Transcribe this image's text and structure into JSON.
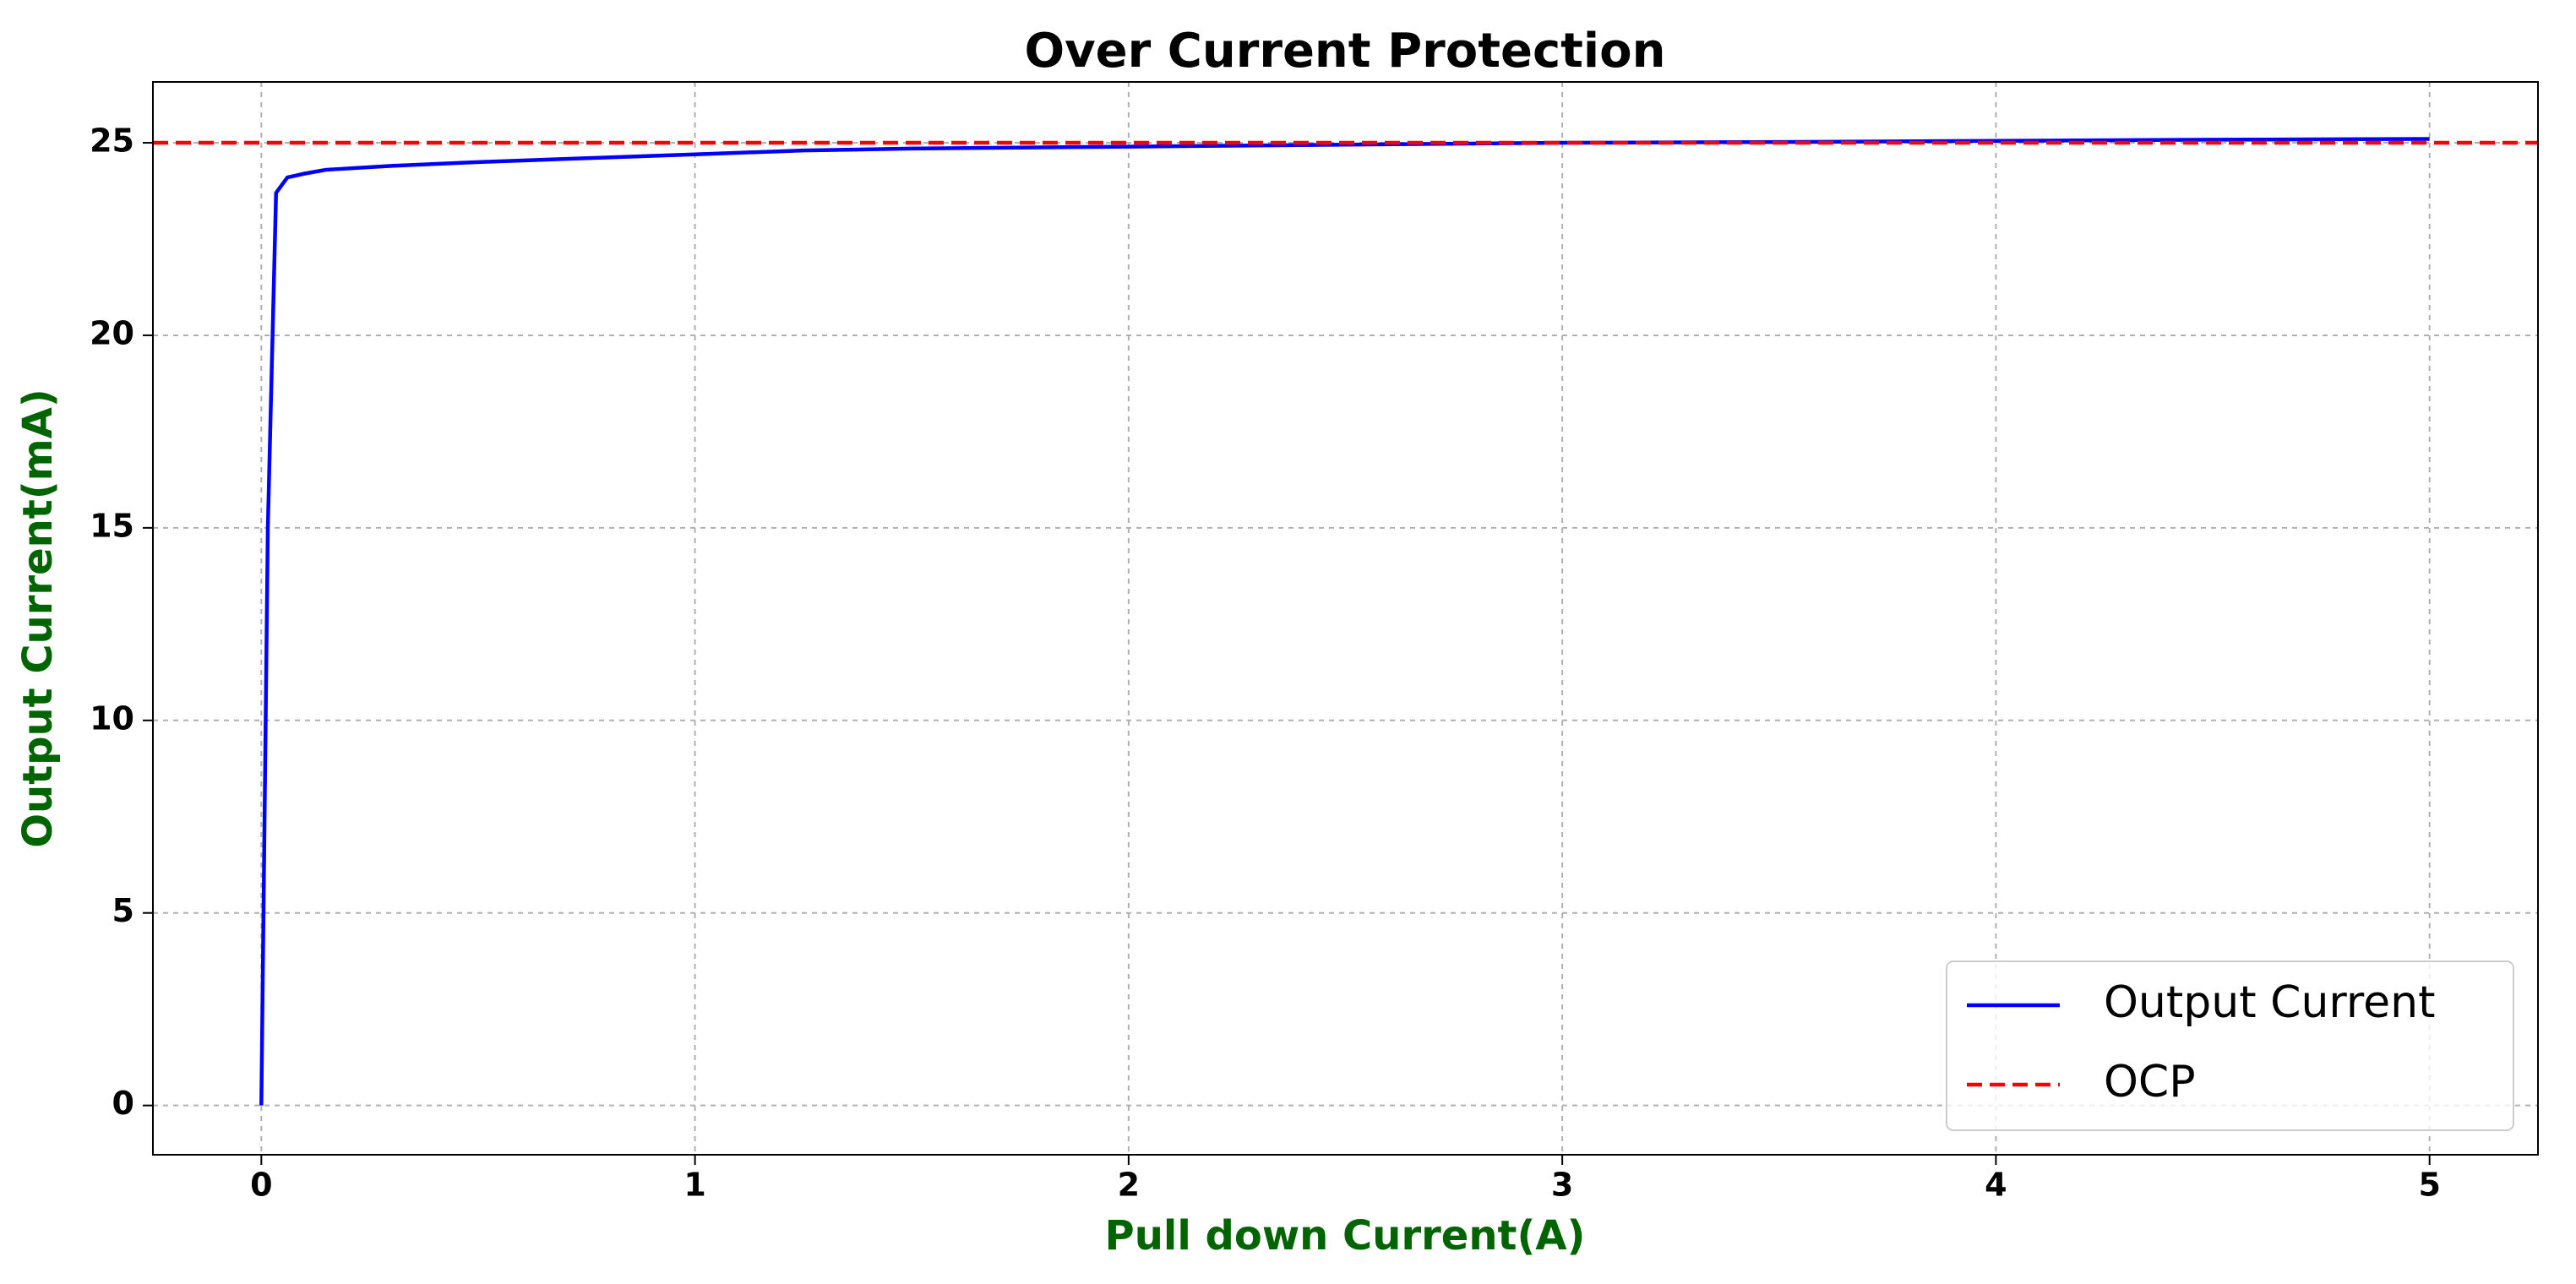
{
  "chart_data": {
    "type": "line",
    "title": "Over Current Protection",
    "x_label": "Pull down Current(A)",
    "y_label": "Output Current(mA)",
    "series": [
      {
        "name": "Output Current",
        "color": "#0000ff",
        "x": [
          0,
          0.015,
          0.034,
          0.06,
          0.1,
          0.15,
          0.3,
          0.5,
          0.75,
          1,
          1.25,
          1.5,
          2,
          2.5,
          3,
          3.5,
          4,
          4.5,
          5
        ],
        "values": [
          0,
          15,
          23.7,
          24.1,
          24.2,
          24.3,
          24.4,
          24.5,
          24.6,
          24.7,
          24.8,
          24.85,
          24.9,
          24.95,
          25.0,
          25.02,
          25.05,
          25.08,
          25.1
        ]
      }
    ],
    "hlines": [
      {
        "name": "OCP",
        "value": 25,
        "color": "#ff0000",
        "style": "dashed"
      }
    ],
    "xlim": [
      -0.25,
      5.25
    ],
    "ylim": [
      -1.28,
      26.58
    ],
    "xticks": [
      0,
      1,
      2,
      3,
      4,
      5
    ],
    "yticks": [
      0,
      5,
      10,
      15,
      20,
      25
    ],
    "grid": true,
    "legend": "lower right"
  }
}
